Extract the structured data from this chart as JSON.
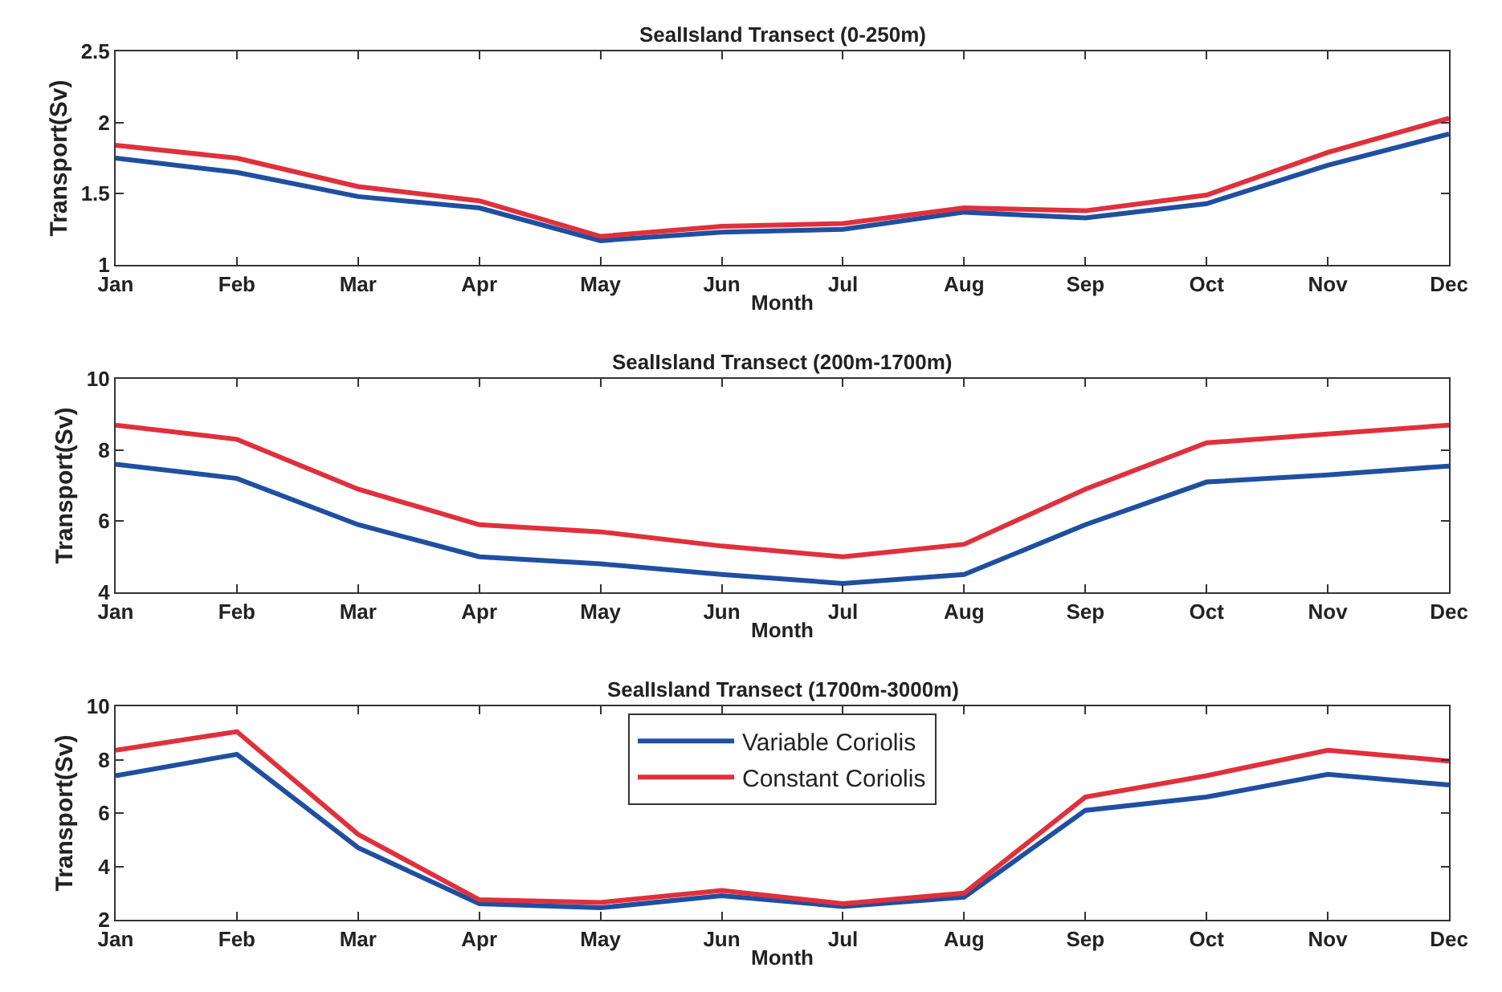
{
  "chart_data": [
    {
      "type": "line",
      "title": "SealIsland Transect (0-250m)",
      "xlabel": "Month",
      "ylabel": "Transport(Sv)",
      "categories": [
        "Jan",
        "Feb",
        "Mar",
        "Apr",
        "May",
        "Jun",
        "Jul",
        "Aug",
        "Sep",
        "Oct",
        "Nov",
        "Dec"
      ],
      "series": [
        {
          "color": "#1f4fa0",
          "values": [
            1.75,
            1.65,
            1.48,
            1.4,
            1.17,
            1.23,
            1.25,
            1.37,
            1.33,
            1.43,
            1.7,
            1.92
          ]
        },
        {
          "color": "#e0303c",
          "values": [
            1.84,
            1.75,
            1.55,
            1.45,
            1.2,
            1.27,
            1.29,
            1.4,
            1.38,
            1.49,
            1.79,
            2.03
          ]
        }
      ],
      "ylim": [
        1,
        2.5
      ],
      "yticks": [
        1,
        1.5,
        2,
        2.5
      ],
      "line_style": "solid"
    },
    {
      "type": "line",
      "title": "SealIsland Transect (200m-1700m)",
      "xlabel": "Month",
      "ylabel": "Transport(Sv)",
      "categories": [
        "Jan",
        "Feb",
        "Mar",
        "Apr",
        "May",
        "Jun",
        "Jul",
        "Aug",
        "Sep",
        "Oct",
        "Nov",
        "Dec"
      ],
      "series": [
        {
          "color": "#1f4fa0",
          "values": [
            7.6,
            7.2,
            5.9,
            5.0,
            4.8,
            4.5,
            4.25,
            4.5,
            5.9,
            7.1,
            7.3,
            7.55
          ]
        },
        {
          "color": "#e0303c",
          "values": [
            8.7,
            8.3,
            6.9,
            5.9,
            5.7,
            5.3,
            5.0,
            5.35,
            6.9,
            8.2,
            8.45,
            8.7
          ]
        }
      ],
      "ylim": [
        4,
        10
      ],
      "yticks": [
        4,
        6,
        8,
        10
      ],
      "line_style": "solid"
    },
    {
      "type": "line",
      "title": "SealIsland Transect (1700m-3000m)",
      "xlabel": "Month",
      "ylabel": "Transport(Sv)",
      "categories": [
        "Jan",
        "Feb",
        "Mar",
        "Apr",
        "May",
        "Jun",
        "Jul",
        "Aug",
        "Sep",
        "Oct",
        "Nov",
        "Dec"
      ],
      "series": [
        {
          "name": "Variable Coriolis",
          "color": "#1f4fa0",
          "values": [
            7.4,
            8.2,
            4.7,
            2.6,
            2.45,
            2.9,
            2.5,
            2.85,
            6.1,
            6.6,
            7.45,
            7.05
          ]
        },
        {
          "name": "Constant Coriolis",
          "color": "#e0303c",
          "values": [
            8.35,
            9.05,
            5.2,
            2.75,
            2.65,
            3.1,
            2.6,
            3.0,
            6.6,
            7.4,
            8.35,
            7.95
          ]
        }
      ],
      "ylim": [
        2,
        10
      ],
      "yticks": [
        2,
        4,
        6,
        8,
        10
      ],
      "legend": "top",
      "line_style": "solid"
    }
  ]
}
